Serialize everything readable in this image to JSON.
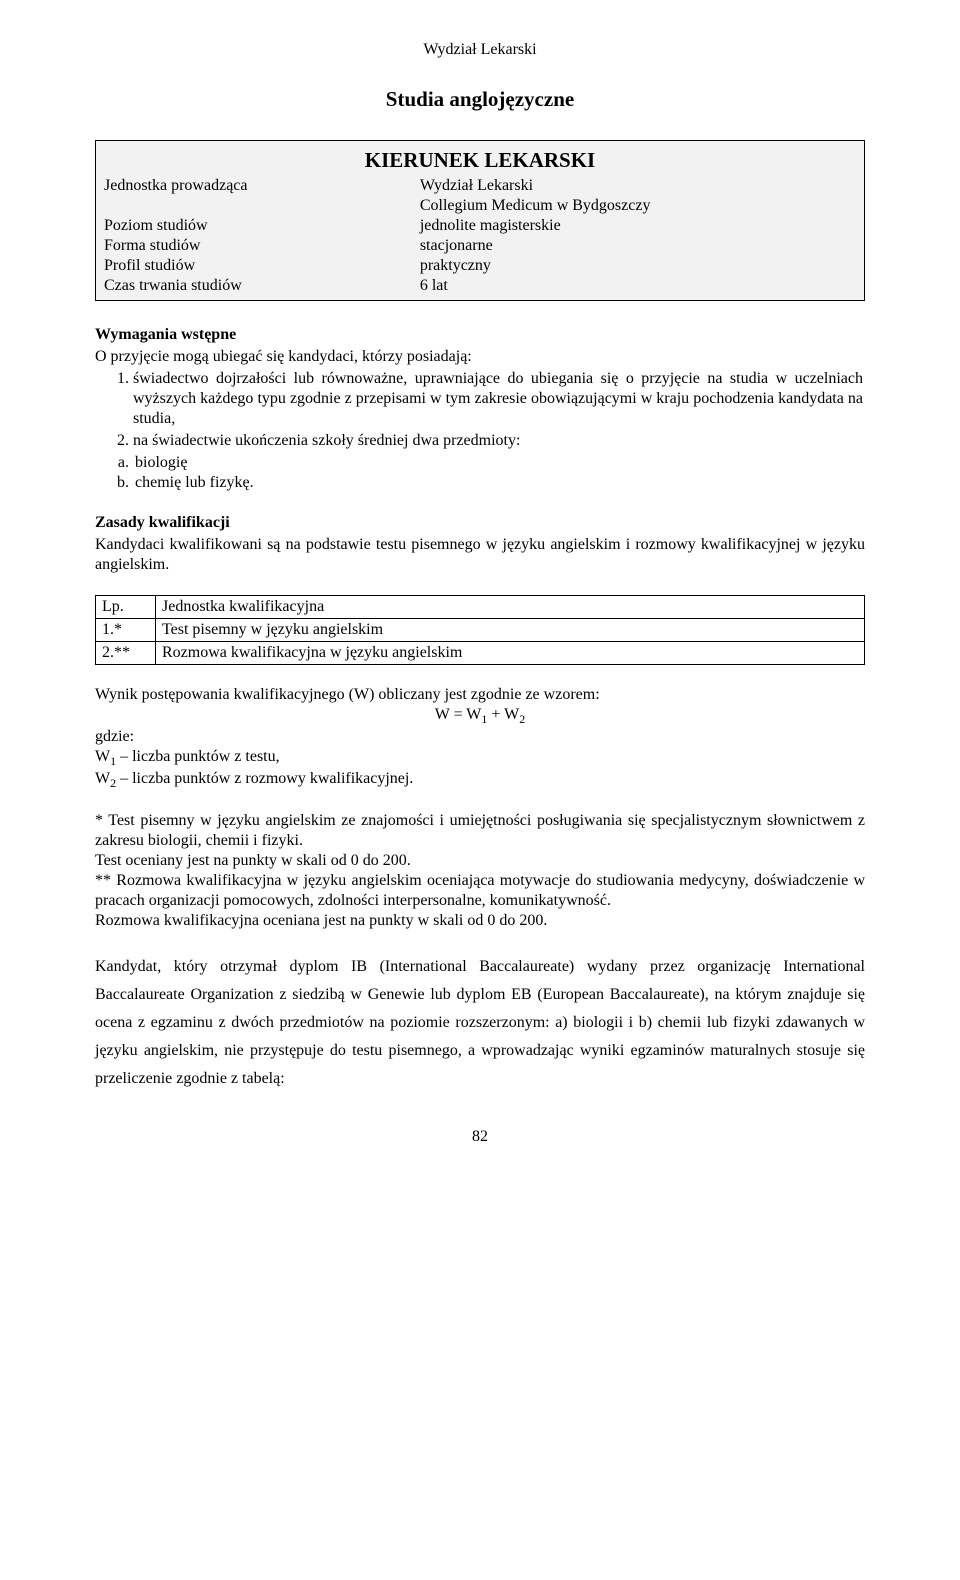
{
  "header": {
    "faculty": "Wydział Lekarski"
  },
  "title": "Studia anglojęzyczne",
  "info_box": {
    "heading": "KIERUNEK LEKARSKI",
    "rows": [
      {
        "label": "Jednostka prowadząca",
        "value": "Wydział Lekarski"
      },
      {
        "label": "",
        "value": "Collegium Medicum w Bydgoszczy"
      },
      {
        "label": "Poziom studiów",
        "value": "jednolite magisterskie"
      },
      {
        "label": "Forma studiów",
        "value": "stacjonarne"
      },
      {
        "label": "Profil studiów",
        "value": "praktyczny"
      },
      {
        "label": "Czas trwania studiów",
        "value": "6 lat"
      }
    ]
  },
  "requirements": {
    "heading": "Wymagania wstępne",
    "intro": "O przyjęcie mogą ubiegać się kandydaci, którzy posiadają:",
    "item1": "świadectwo dojrzałości lub równoważne, uprawniające do ubiegania się o przyjęcie na studia w uczelniach wyższych każdego typu zgodnie z przepisami w tym zakresie obowiązującymi w kraju pochodzenia kandydata na studia,",
    "item2": "na świadectwie ukończenia szkoły średniej dwa przedmioty:",
    "sub_a": "biologię",
    "sub_b": "chemię lub fizykę."
  },
  "zasady": {
    "heading": "Zasady kwalifikacji",
    "text": "Kandydaci kwalifikowani są na podstawie testu pisemnego w języku angielskim i rozmowy kwalifikacyjnej w języku angielskim."
  },
  "qual_table": {
    "header": {
      "c1": "Lp.",
      "c2": "Jednostka kwalifikacyjna"
    },
    "rows": [
      {
        "c1": "1.*",
        "c2": "Test pisemny w języku angielskim"
      },
      {
        "c1": "2.**",
        "c2": "Rozmowa kwalifikacyjna w języku angielskim"
      }
    ]
  },
  "formula": {
    "intro": "Wynik postępowania  kwalifikacyjnego (W) obliczany jest zgodnie ze wzorem:",
    "eq_pre": "W = W",
    "eq_sub1": "1",
    "eq_plus": " + W",
    "eq_sub2": "2",
    "gdzie": "gdzie:",
    "w1_pre": "W",
    "w1_sub": "1",
    "w1_post": " – liczba punktów z testu,",
    "w2_pre": "W",
    "w2_sub": "2",
    "w2_post": " – liczba punktów z rozmowy kwalifikacyjnej."
  },
  "notes": {
    "p1": "* Test pisemny w języku angielskim ze znajomości i umiejętności posługiwania się specjalistycznym słownictwem  z zakresu biologii, chemii i fizyki.",
    "p2": "Test oceniany jest na punkty w skali od 0 do 200.",
    "p3": "** Rozmowa kwalifikacyjna w języku angielskim oceniająca motywacje do studiowania medycyny, doświadczenie w pracach organizacji pomocowych, zdolności interpersonalne, komunikatywność.",
    "p4": "Rozmowa kwalifikacyjna oceniana jest na punkty w skali od 0 do 200."
  },
  "ib": {
    "text": "Kandydat, który otrzymał dyplom IB (International Baccalaureate) wydany przez organizację International Baccalaureate Organization z siedzibą w Genewie lub dyplom EB (European Baccalaureate), na którym znajduje się ocena z egzaminu z dwóch przedmiotów na poziomie rozszerzonym: a) biologii i b) chemii lub fizyki zdawanych w języku angielskim, nie przystępuje do testu pisemnego, a wprowadzając wyniki egzaminów maturalnych stosuje się przeliczenie zgodnie z tabelą:"
  },
  "page_number": "82"
}
